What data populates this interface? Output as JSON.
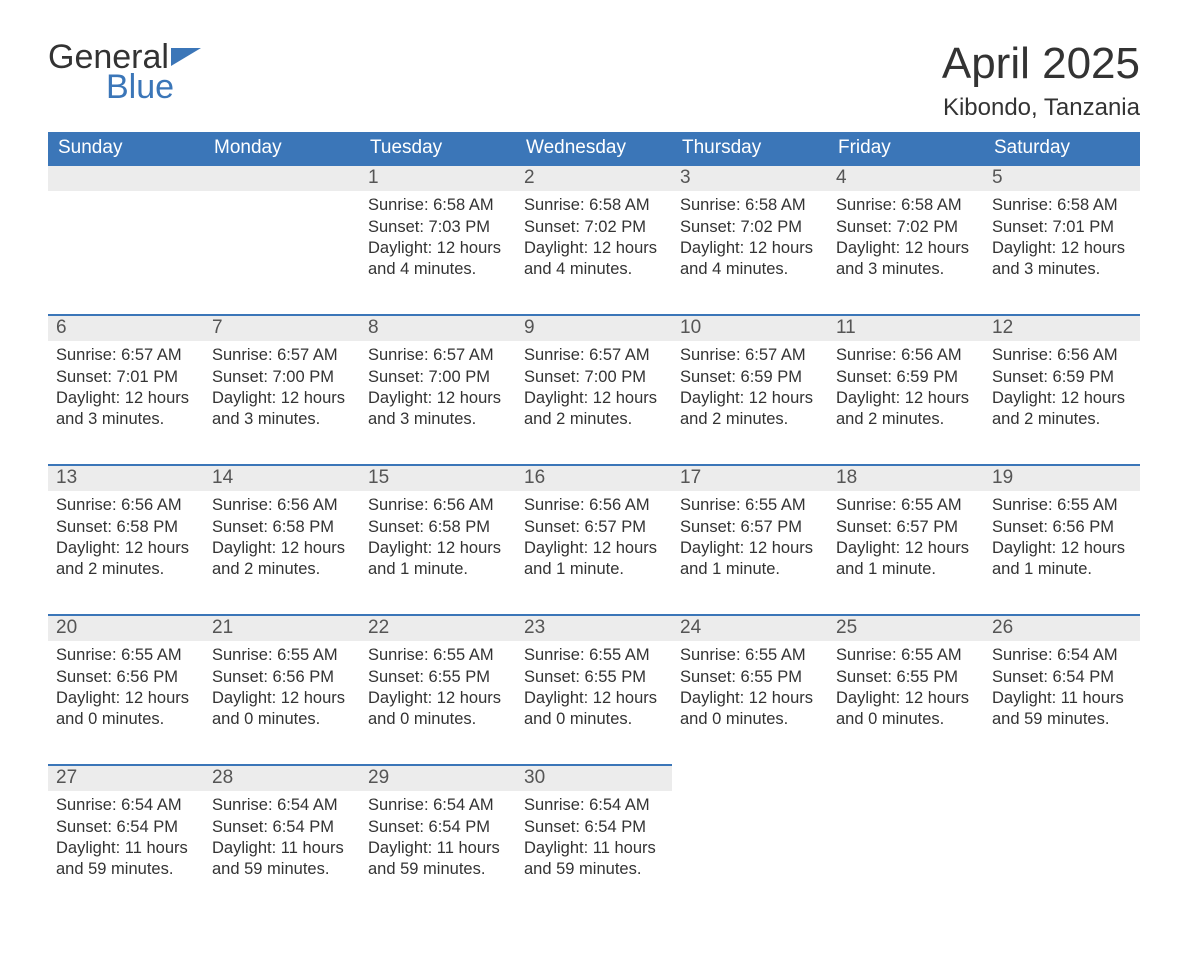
{
  "brand": {
    "word1": "General",
    "word2": "Blue",
    "accent_color": "#3b76b8"
  },
  "title": "April 2025",
  "location": "Kibondo, Tanzania",
  "colors": {
    "header_bg": "#3b76b8",
    "header_text": "#ffffff",
    "daynum_bg": "#ececec",
    "daynum_border": "#3b76b8",
    "body_text": "#333333",
    "page_bg": "#ffffff"
  },
  "layout": {
    "columns": 7,
    "rows": 5,
    "font_family": "Segoe UI"
  },
  "day_headers": [
    "Sunday",
    "Monday",
    "Tuesday",
    "Wednesday",
    "Thursday",
    "Friday",
    "Saturday"
  ],
  "weeks": [
    [
      {
        "day": "",
        "sunrise": "",
        "sunset": "",
        "daylight1": "",
        "daylight2": ""
      },
      {
        "day": "",
        "sunrise": "",
        "sunset": "",
        "daylight1": "",
        "daylight2": ""
      },
      {
        "day": "1",
        "sunrise": "Sunrise: 6:58 AM",
        "sunset": "Sunset: 7:03 PM",
        "daylight1": "Daylight: 12 hours",
        "daylight2": "and 4 minutes."
      },
      {
        "day": "2",
        "sunrise": "Sunrise: 6:58 AM",
        "sunset": "Sunset: 7:02 PM",
        "daylight1": "Daylight: 12 hours",
        "daylight2": "and 4 minutes."
      },
      {
        "day": "3",
        "sunrise": "Sunrise: 6:58 AM",
        "sunset": "Sunset: 7:02 PM",
        "daylight1": "Daylight: 12 hours",
        "daylight2": "and 4 minutes."
      },
      {
        "day": "4",
        "sunrise": "Sunrise: 6:58 AM",
        "sunset": "Sunset: 7:02 PM",
        "daylight1": "Daylight: 12 hours",
        "daylight2": "and 3 minutes."
      },
      {
        "day": "5",
        "sunrise": "Sunrise: 6:58 AM",
        "sunset": "Sunset: 7:01 PM",
        "daylight1": "Daylight: 12 hours",
        "daylight2": "and 3 minutes."
      }
    ],
    [
      {
        "day": "6",
        "sunrise": "Sunrise: 6:57 AM",
        "sunset": "Sunset: 7:01 PM",
        "daylight1": "Daylight: 12 hours",
        "daylight2": "and 3 minutes."
      },
      {
        "day": "7",
        "sunrise": "Sunrise: 6:57 AM",
        "sunset": "Sunset: 7:00 PM",
        "daylight1": "Daylight: 12 hours",
        "daylight2": "and 3 minutes."
      },
      {
        "day": "8",
        "sunrise": "Sunrise: 6:57 AM",
        "sunset": "Sunset: 7:00 PM",
        "daylight1": "Daylight: 12 hours",
        "daylight2": "and 3 minutes."
      },
      {
        "day": "9",
        "sunrise": "Sunrise: 6:57 AM",
        "sunset": "Sunset: 7:00 PM",
        "daylight1": "Daylight: 12 hours",
        "daylight2": "and 2 minutes."
      },
      {
        "day": "10",
        "sunrise": "Sunrise: 6:57 AM",
        "sunset": "Sunset: 6:59 PM",
        "daylight1": "Daylight: 12 hours",
        "daylight2": "and 2 minutes."
      },
      {
        "day": "11",
        "sunrise": "Sunrise: 6:56 AM",
        "sunset": "Sunset: 6:59 PM",
        "daylight1": "Daylight: 12 hours",
        "daylight2": "and 2 minutes."
      },
      {
        "day": "12",
        "sunrise": "Sunrise: 6:56 AM",
        "sunset": "Sunset: 6:59 PM",
        "daylight1": "Daylight: 12 hours",
        "daylight2": "and 2 minutes."
      }
    ],
    [
      {
        "day": "13",
        "sunrise": "Sunrise: 6:56 AM",
        "sunset": "Sunset: 6:58 PM",
        "daylight1": "Daylight: 12 hours",
        "daylight2": "and 2 minutes."
      },
      {
        "day": "14",
        "sunrise": "Sunrise: 6:56 AM",
        "sunset": "Sunset: 6:58 PM",
        "daylight1": "Daylight: 12 hours",
        "daylight2": "and 2 minutes."
      },
      {
        "day": "15",
        "sunrise": "Sunrise: 6:56 AM",
        "sunset": "Sunset: 6:58 PM",
        "daylight1": "Daylight: 12 hours",
        "daylight2": "and 1 minute."
      },
      {
        "day": "16",
        "sunrise": "Sunrise: 6:56 AM",
        "sunset": "Sunset: 6:57 PM",
        "daylight1": "Daylight: 12 hours",
        "daylight2": "and 1 minute."
      },
      {
        "day": "17",
        "sunrise": "Sunrise: 6:55 AM",
        "sunset": "Sunset: 6:57 PM",
        "daylight1": "Daylight: 12 hours",
        "daylight2": "and 1 minute."
      },
      {
        "day": "18",
        "sunrise": "Sunrise: 6:55 AM",
        "sunset": "Sunset: 6:57 PM",
        "daylight1": "Daylight: 12 hours",
        "daylight2": "and 1 minute."
      },
      {
        "day": "19",
        "sunrise": "Sunrise: 6:55 AM",
        "sunset": "Sunset: 6:56 PM",
        "daylight1": "Daylight: 12 hours",
        "daylight2": "and 1 minute."
      }
    ],
    [
      {
        "day": "20",
        "sunrise": "Sunrise: 6:55 AM",
        "sunset": "Sunset: 6:56 PM",
        "daylight1": "Daylight: 12 hours",
        "daylight2": "and 0 minutes."
      },
      {
        "day": "21",
        "sunrise": "Sunrise: 6:55 AM",
        "sunset": "Sunset: 6:56 PM",
        "daylight1": "Daylight: 12 hours",
        "daylight2": "and 0 minutes."
      },
      {
        "day": "22",
        "sunrise": "Sunrise: 6:55 AM",
        "sunset": "Sunset: 6:55 PM",
        "daylight1": "Daylight: 12 hours",
        "daylight2": "and 0 minutes."
      },
      {
        "day": "23",
        "sunrise": "Sunrise: 6:55 AM",
        "sunset": "Sunset: 6:55 PM",
        "daylight1": "Daylight: 12 hours",
        "daylight2": "and 0 minutes."
      },
      {
        "day": "24",
        "sunrise": "Sunrise: 6:55 AM",
        "sunset": "Sunset: 6:55 PM",
        "daylight1": "Daylight: 12 hours",
        "daylight2": "and 0 minutes."
      },
      {
        "day": "25",
        "sunrise": "Sunrise: 6:55 AM",
        "sunset": "Sunset: 6:55 PM",
        "daylight1": "Daylight: 12 hours",
        "daylight2": "and 0 minutes."
      },
      {
        "day": "26",
        "sunrise": "Sunrise: 6:54 AM",
        "sunset": "Sunset: 6:54 PM",
        "daylight1": "Daylight: 11 hours",
        "daylight2": "and 59 minutes."
      }
    ],
    [
      {
        "day": "27",
        "sunrise": "Sunrise: 6:54 AM",
        "sunset": "Sunset: 6:54 PM",
        "daylight1": "Daylight: 11 hours",
        "daylight2": "and 59 minutes."
      },
      {
        "day": "28",
        "sunrise": "Sunrise: 6:54 AM",
        "sunset": "Sunset: 6:54 PM",
        "daylight1": "Daylight: 11 hours",
        "daylight2": "and 59 minutes."
      },
      {
        "day": "29",
        "sunrise": "Sunrise: 6:54 AM",
        "sunset": "Sunset: 6:54 PM",
        "daylight1": "Daylight: 11 hours",
        "daylight2": "and 59 minutes."
      },
      {
        "day": "30",
        "sunrise": "Sunrise: 6:54 AM",
        "sunset": "Sunset: 6:54 PM",
        "daylight1": "Daylight: 11 hours",
        "daylight2": "and 59 minutes."
      },
      {
        "day": "",
        "sunrise": "",
        "sunset": "",
        "daylight1": "",
        "daylight2": ""
      },
      {
        "day": "",
        "sunrise": "",
        "sunset": "",
        "daylight1": "",
        "daylight2": ""
      },
      {
        "day": "",
        "sunrise": "",
        "sunset": "",
        "daylight1": "",
        "daylight2": ""
      }
    ]
  ]
}
